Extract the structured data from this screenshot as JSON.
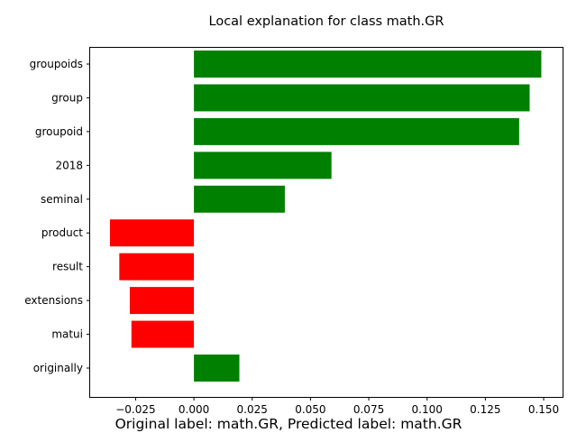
{
  "chart_data": {
    "type": "bar",
    "orientation": "horizontal",
    "title": "Local explanation for class math.GR",
    "caption": "Original label: math.GR, Predicted label: math.GR",
    "xlabel": "",
    "ylabel": "",
    "categories": [
      "groupoids",
      "group",
      "groupoid",
      "2018",
      "seminal",
      "product",
      "result",
      "extensions",
      "matui",
      "originally"
    ],
    "values": [
      0.149,
      0.144,
      0.1395,
      0.059,
      0.039,
      -0.036,
      -0.032,
      -0.0275,
      -0.0268,
      0.0195
    ],
    "xlim": [
      -0.0445,
      0.1585
    ],
    "xticks": [
      -0.025,
      0.0,
      0.025,
      0.05,
      0.075,
      0.1,
      0.125,
      0.15
    ],
    "xtick_labels": [
      "−0.025",
      "0.000",
      "0.025",
      "0.050",
      "0.075",
      "0.100",
      "0.125",
      "0.150"
    ],
    "colors": {
      "positive": "#008000",
      "negative": "#ff0000"
    },
    "grid": false,
    "legend": "none"
  }
}
